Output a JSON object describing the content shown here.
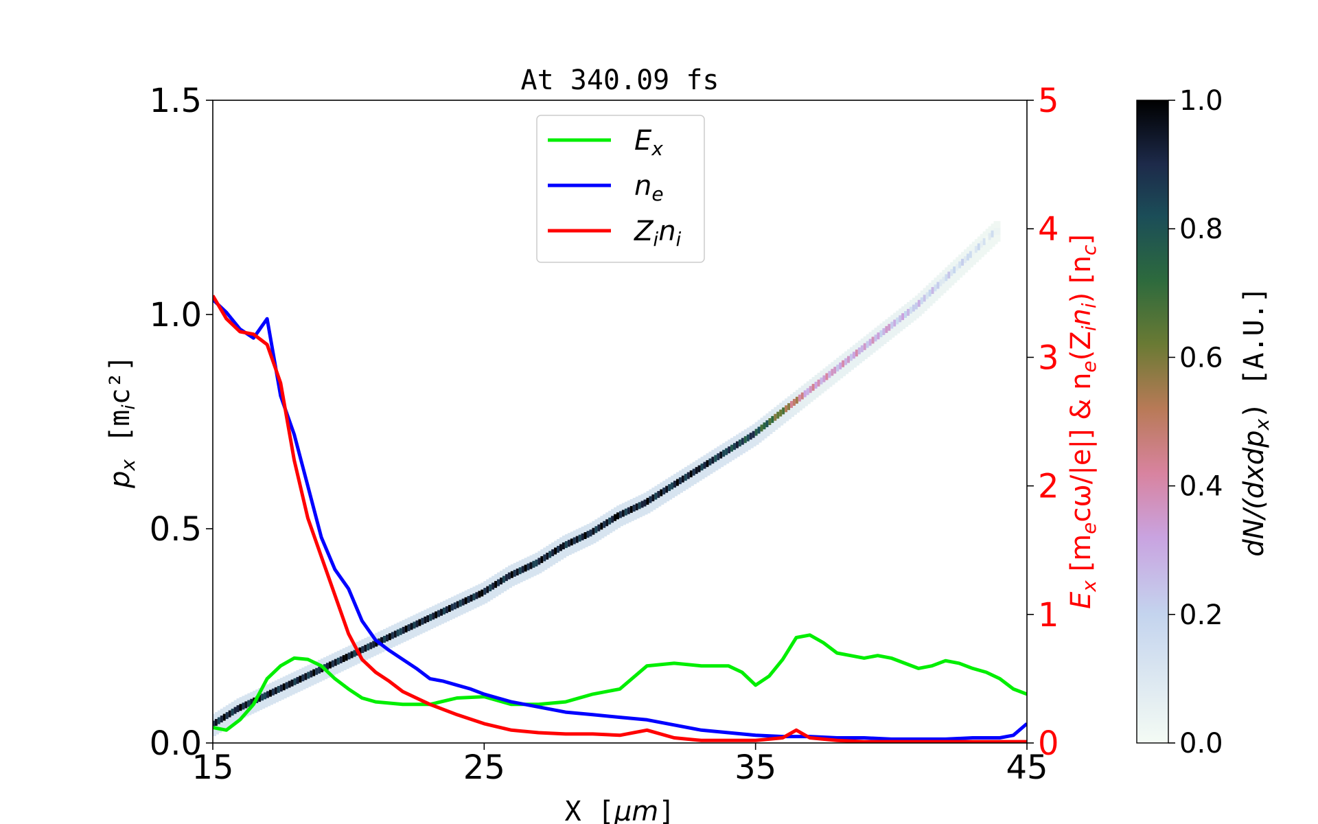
{
  "chart_data": {
    "type": "heatmap",
    "title": "At 340.09 fs",
    "xlabel": {
      "pre": "X  [",
      "sym": "μm",
      "post": "]"
    },
    "ylabel": {
      "main": "p",
      "sub": "x",
      "units": "  [m",
      "units_sub": "i",
      "units_tail": "c²]"
    },
    "y2label": {
      "t1": "E",
      "t1_sub": "x",
      "t2": "  [m",
      "t2_sub": "e",
      "t3": "cω/|e|]  &  n",
      "t3_sub": "e",
      "t4": "(Z",
      "t4_sub": "i",
      "t5": "n",
      "t5_sub": "i",
      "t6": ")  [n",
      "t6_sub": "c",
      "t7": "]"
    },
    "colorbar_label": {
      "main": "dN/(dxdp",
      "sub": "x",
      "tail": ")  [A.U.]"
    },
    "xlim": [
      15,
      45
    ],
    "ylim": [
      0,
      1.5
    ],
    "y2lim": [
      0,
      5
    ],
    "clim": [
      0,
      1
    ],
    "colormap": "cubehelix_r",
    "colors": {
      "Ex": "#00ee00",
      "ne": "#0000ff",
      "Zini": "#ff0000",
      "right_axis": "#ff0000"
    },
    "xticks": [
      "15",
      "25",
      "35",
      "45"
    ],
    "xtick_values": [
      15,
      25,
      35,
      45
    ],
    "yticks": [
      "0.0",
      "0.5",
      "1.0",
      "1.5"
    ],
    "ytick_values": [
      0,
      0.5,
      1.0,
      1.5
    ],
    "y2ticks": [
      "0",
      "1",
      "2",
      "3",
      "4",
      "5"
    ],
    "y2tick_values": [
      0,
      1,
      2,
      3,
      4,
      5
    ],
    "cbar_ticks": [
      "0.0",
      "0.2",
      "0.4",
      "0.6",
      "0.8",
      "1.0"
    ],
    "cbar_tick_values": [
      0,
      0.2,
      0.4,
      0.6,
      0.8,
      1.0
    ],
    "legend": {
      "placement": "upper center",
      "entries": [
        {
          "key": "Ex",
          "sym": "E",
          "sub": "x",
          "sym2": "",
          "sub2": ""
        },
        {
          "key": "ne",
          "sym": "n",
          "sub": "e",
          "sym2": "",
          "sub2": ""
        },
        {
          "key": "Zini",
          "sym": "Z",
          "sub": "i",
          "sym2": "n",
          "sub2": "i"
        }
      ]
    },
    "phase_space": {
      "x": [
        15.0,
        16.0,
        17.0,
        18.0,
        19.0,
        20.0,
        21.0,
        22.0,
        23.0,
        24.0,
        25.0,
        26.0,
        27.0,
        28.0,
        29.0,
        30.0,
        31.0,
        32.0,
        33.0,
        34.0,
        35.0,
        36.0,
        37.0,
        38.0,
        39.0,
        40.0,
        41.0,
        42.0,
        43.0,
        44.0
      ],
      "px": [
        0.04,
        0.08,
        0.11,
        0.14,
        0.17,
        0.2,
        0.23,
        0.26,
        0.29,
        0.32,
        0.35,
        0.39,
        0.42,
        0.46,
        0.49,
        0.53,
        0.56,
        0.6,
        0.64,
        0.68,
        0.72,
        0.77,
        0.82,
        0.87,
        0.92,
        0.97,
        1.02,
        1.08,
        1.14,
        1.2
      ],
      "intensity": [
        1.0,
        1.0,
        1.0,
        1.0,
        1.0,
        1.0,
        1.0,
        1.0,
        1.0,
        1.0,
        1.0,
        1.0,
        1.0,
        1.0,
        1.0,
        1.0,
        1.0,
        1.0,
        1.0,
        0.95,
        0.9,
        0.7,
        0.45,
        0.4,
        0.4,
        0.35,
        0.3,
        0.25,
        0.2,
        0.15
      ]
    },
    "series": [
      {
        "key": "Ex",
        "x": [
          15.0,
          15.5,
          16.0,
          16.5,
          17.0,
          17.5,
          18.0,
          18.5,
          19.0,
          19.5,
          20.0,
          20.5,
          21.0,
          22.0,
          23.0,
          24.0,
          25.0,
          26.0,
          27.0,
          28.0,
          29.0,
          30.0,
          31.0,
          32.0,
          33.0,
          34.0,
          34.5,
          35.0,
          35.5,
          36.0,
          36.5,
          37.0,
          37.5,
          38.0,
          38.5,
          39.0,
          39.5,
          40.0,
          40.5,
          41.0,
          41.5,
          42.0,
          42.5,
          43.0,
          43.5,
          44.0,
          44.5,
          45.0
        ],
        "y": [
          0.12,
          0.1,
          0.18,
          0.3,
          0.5,
          0.6,
          0.66,
          0.65,
          0.6,
          0.5,
          0.42,
          0.35,
          0.32,
          0.3,
          0.3,
          0.35,
          0.36,
          0.3,
          0.3,
          0.32,
          0.38,
          0.42,
          0.6,
          0.62,
          0.6,
          0.6,
          0.55,
          0.45,
          0.52,
          0.65,
          0.82,
          0.84,
          0.78,
          0.7,
          0.68,
          0.66,
          0.68,
          0.66,
          0.62,
          0.58,
          0.6,
          0.64,
          0.62,
          0.58,
          0.55,
          0.5,
          0.42,
          0.38
        ]
      },
      {
        "key": "ne",
        "x": [
          15.0,
          15.5,
          16.0,
          16.5,
          17.0,
          17.5,
          18.0,
          18.5,
          19.0,
          19.5,
          20.0,
          20.5,
          21.0,
          21.5,
          22.0,
          22.5,
          23.0,
          23.5,
          24.0,
          24.5,
          25.0,
          25.5,
          26.0,
          26.5,
          27.0,
          28.0,
          29.0,
          30.0,
          31.0,
          32.0,
          33.0,
          34.0,
          35.0,
          36.0,
          37.0,
          38.0,
          39.0,
          40.0,
          41.0,
          42.0,
          43.0,
          44.0,
          44.5,
          45.0
        ],
        "y": [
          3.45,
          3.35,
          3.22,
          3.15,
          3.3,
          2.7,
          2.4,
          2.0,
          1.6,
          1.35,
          1.2,
          0.95,
          0.8,
          0.72,
          0.65,
          0.58,
          0.5,
          0.48,
          0.45,
          0.42,
          0.38,
          0.35,
          0.32,
          0.3,
          0.28,
          0.24,
          0.22,
          0.2,
          0.18,
          0.14,
          0.1,
          0.08,
          0.06,
          0.05,
          0.05,
          0.04,
          0.04,
          0.03,
          0.03,
          0.03,
          0.04,
          0.04,
          0.06,
          0.15
        ]
      },
      {
        "key": "Zini",
        "x": [
          15.0,
          15.5,
          16.0,
          16.5,
          17.0,
          17.5,
          18.0,
          18.5,
          19.0,
          19.5,
          20.0,
          20.5,
          21.0,
          21.5,
          22.0,
          22.5,
          23.0,
          24.0,
          25.0,
          26.0,
          27.0,
          28.0,
          29.0,
          30.0,
          31.0,
          32.0,
          33.0,
          34.0,
          35.0,
          36.0,
          36.5,
          37.0,
          38.0,
          39.0,
          40.0,
          41.0,
          42.0,
          43.0,
          44.0,
          45.0
        ],
        "y": [
          3.48,
          3.3,
          3.2,
          3.18,
          3.1,
          2.8,
          2.2,
          1.75,
          1.45,
          1.15,
          0.85,
          0.65,
          0.55,
          0.48,
          0.4,
          0.35,
          0.3,
          0.22,
          0.15,
          0.1,
          0.08,
          0.07,
          0.07,
          0.06,
          0.1,
          0.04,
          0.02,
          0.02,
          0.02,
          0.04,
          0.1,
          0.04,
          0.02,
          0.01,
          0.01,
          0.01,
          0.01,
          0.01,
          0.01,
          0.01
        ]
      }
    ]
  }
}
